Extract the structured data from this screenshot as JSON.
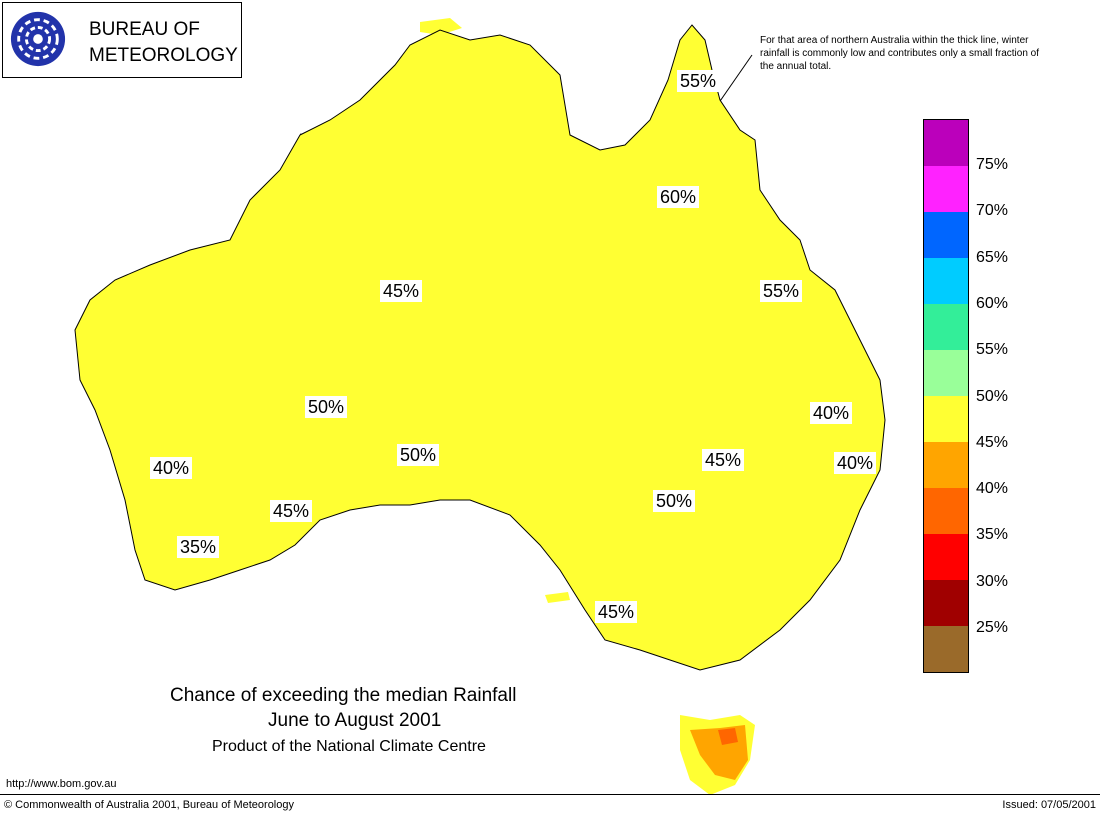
{
  "header": {
    "org_name": "BUREAU OF\nMETEOROLOGY",
    "logo_icon": "bom-spiral-logo"
  },
  "note": "For that area of northern Australia within the thick line, winter rainfall is commonly low and contributes only a small fraction of the annual total.",
  "map": {
    "region": "Australia",
    "contour_labels": {
      "l55_north": "55%",
      "l60": "60%",
      "l55_east": "55%",
      "l45_north": "45%",
      "l50_west": "50%",
      "l50_central": "50%",
      "l45_east": "45%",
      "l50_east": "50%",
      "l40_ne": "40%",
      "l40_e": "40%",
      "l40_sw": "40%",
      "l45_sw": "45%",
      "l35_sw": "35%",
      "l45_se": "45%"
    },
    "colors": {
      "brown": "#9a6a2a",
      "dark_red": "#a00000",
      "red": "#ff0000",
      "orange_red": "#ff6600",
      "orange": "#ffa500",
      "yellow": "#ffff33",
      "light_green": "#99ff99",
      "green": "#33ee99",
      "cyan": "#00ccff",
      "blue": "#0066ff",
      "magenta": "#ff22ff",
      "purple": "#bb00bb"
    }
  },
  "legend": {
    "swatches": [
      {
        "color": "#bb00bb"
      },
      {
        "color": "#ff22ff"
      },
      {
        "color": "#0066ff"
      },
      {
        "color": "#00ccff"
      },
      {
        "color": "#33ee99"
      },
      {
        "color": "#99ff99"
      },
      {
        "color": "#ffff33"
      },
      {
        "color": "#ffa500"
      },
      {
        "color": "#ff6600"
      },
      {
        "color": "#ff0000"
      },
      {
        "color": "#a00000"
      },
      {
        "color": "#9a6a2a"
      }
    ],
    "labels": [
      "75%",
      "70%",
      "65%",
      "60%",
      "55%",
      "50%",
      "45%",
      "40%",
      "35%",
      "30%",
      "25%"
    ]
  },
  "title": {
    "line1": "Chance of exceeding the median Rainfall",
    "line2": "June to August 2001",
    "line3": "Product of the National Climate Centre"
  },
  "footer": {
    "url": "http://www.bom.gov.au",
    "copyright": "© Commonwealth of Australia 2001, Bureau of Meteorology",
    "issued": "Issued: 07/05/2001"
  }
}
